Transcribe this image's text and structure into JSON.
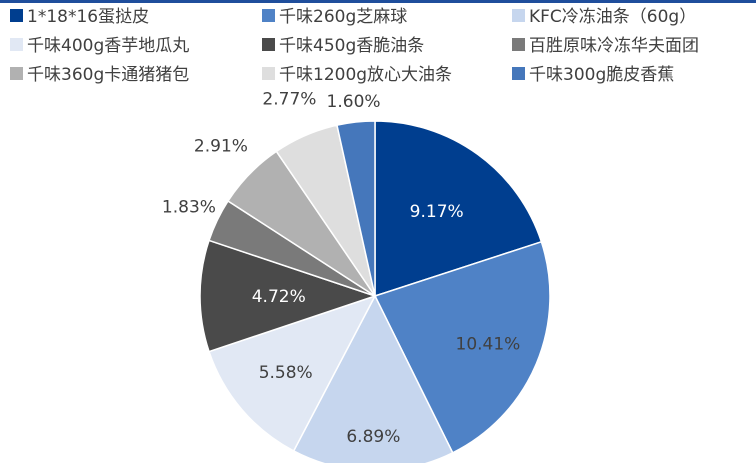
{
  "chart_data": {
    "type": "pie",
    "title": "",
    "legend_position": "top",
    "series": [
      {
        "name": "1*18*16蛋挞皮",
        "value": 9.17,
        "label": "9.17%",
        "color": "#003e8f"
      },
      {
        "name": "千味260g芝麻球",
        "value": 10.41,
        "label": "10.41%",
        "color": "#4f82c6"
      },
      {
        "name": "KFC冷冻油条（60g）",
        "value": 6.89,
        "label": "6.89%",
        "color": "#c6d6ee"
      },
      {
        "name": "千味400g香芋地瓜丸",
        "value": 5.58,
        "label": "5.58%",
        "color": "#e1e8f4"
      },
      {
        "name": "千味450g香脆油条",
        "value": 4.72,
        "label": "4.72%",
        "color": "#4a4a4a"
      },
      {
        "name": "百胜原味冷冻华夫面团",
        "value": 1.83,
        "label": "1.83%",
        "color": "#7a7a7a"
      },
      {
        "name": "千味360g卡通猪猪包",
        "value": 2.91,
        "label": "2.91%",
        "color": "#b1b1b1"
      },
      {
        "name": "千味1200g放心大油条",
        "value": 2.77,
        "label": "2.77%",
        "color": "#dedede"
      },
      {
        "name": "千味300g脆皮香蕉",
        "value": 1.6,
        "label": "1.60%",
        "color": "#4577bb"
      }
    ]
  }
}
